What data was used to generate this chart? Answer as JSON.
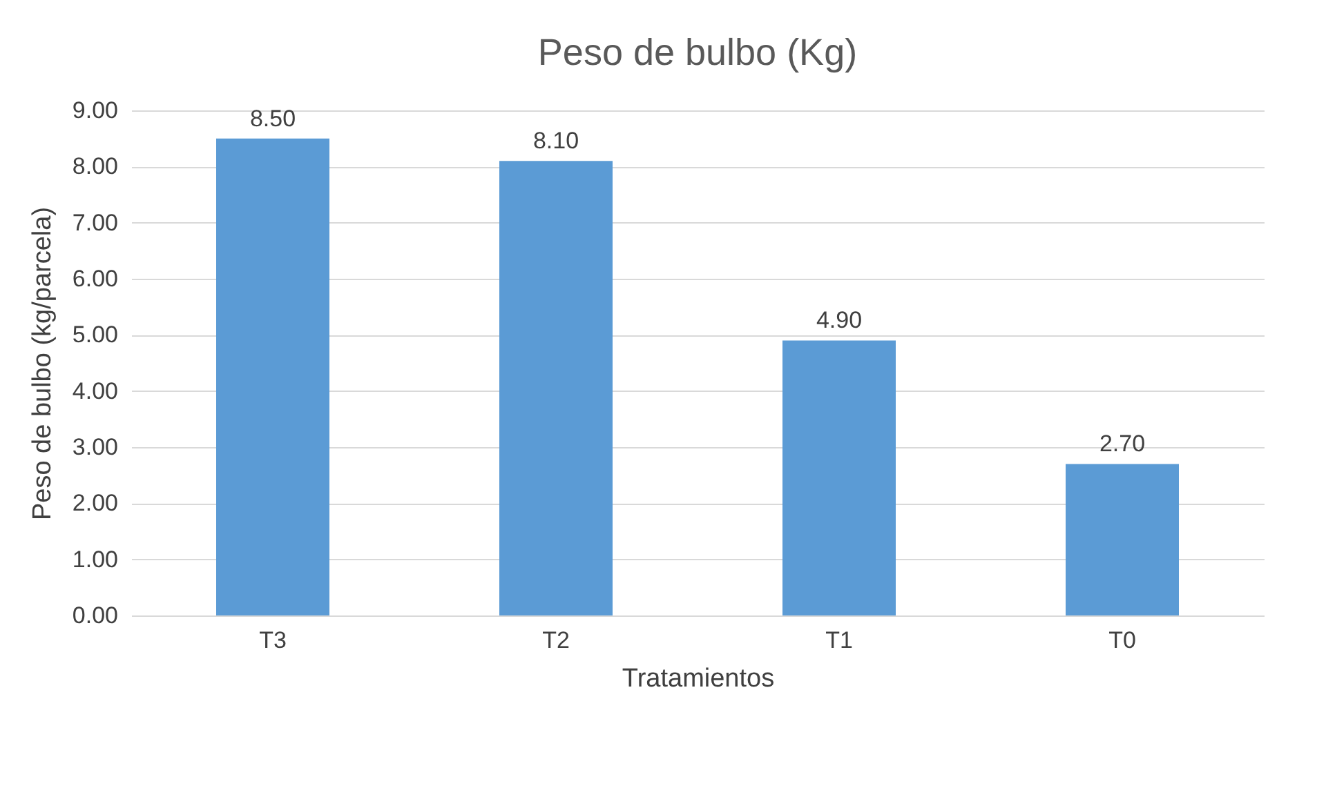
{
  "chart_data": {
    "type": "bar",
    "title": "Peso de bulbo (Kg)",
    "xlabel": "Tratamientos",
    "ylabel": "Peso de bulbo (kg/parcela)",
    "categories": [
      "T3",
      "T2",
      "T1",
      "T0"
    ],
    "values": [
      8.5,
      8.1,
      4.9,
      2.7
    ],
    "value_labels": [
      "8.50",
      "8.10",
      "4.90",
      "2.70"
    ],
    "color": "#5b9bd5",
    "ylim": [
      0,
      9
    ],
    "yticks": [
      {
        "value": 0,
        "label": "0.00"
      },
      {
        "value": 1,
        "label": "1.00"
      },
      {
        "value": 2,
        "label": "2.00"
      },
      {
        "value": 3,
        "label": "3.00"
      },
      {
        "value": 4,
        "label": "4.00"
      },
      {
        "value": 5,
        "label": "5.00"
      },
      {
        "value": 6,
        "label": "6.00"
      },
      {
        "value": 7,
        "label": "7.00"
      },
      {
        "value": 8,
        "label": "8.00"
      },
      {
        "value": 9,
        "label": "9.00"
      }
    ],
    "grid": "y"
  }
}
